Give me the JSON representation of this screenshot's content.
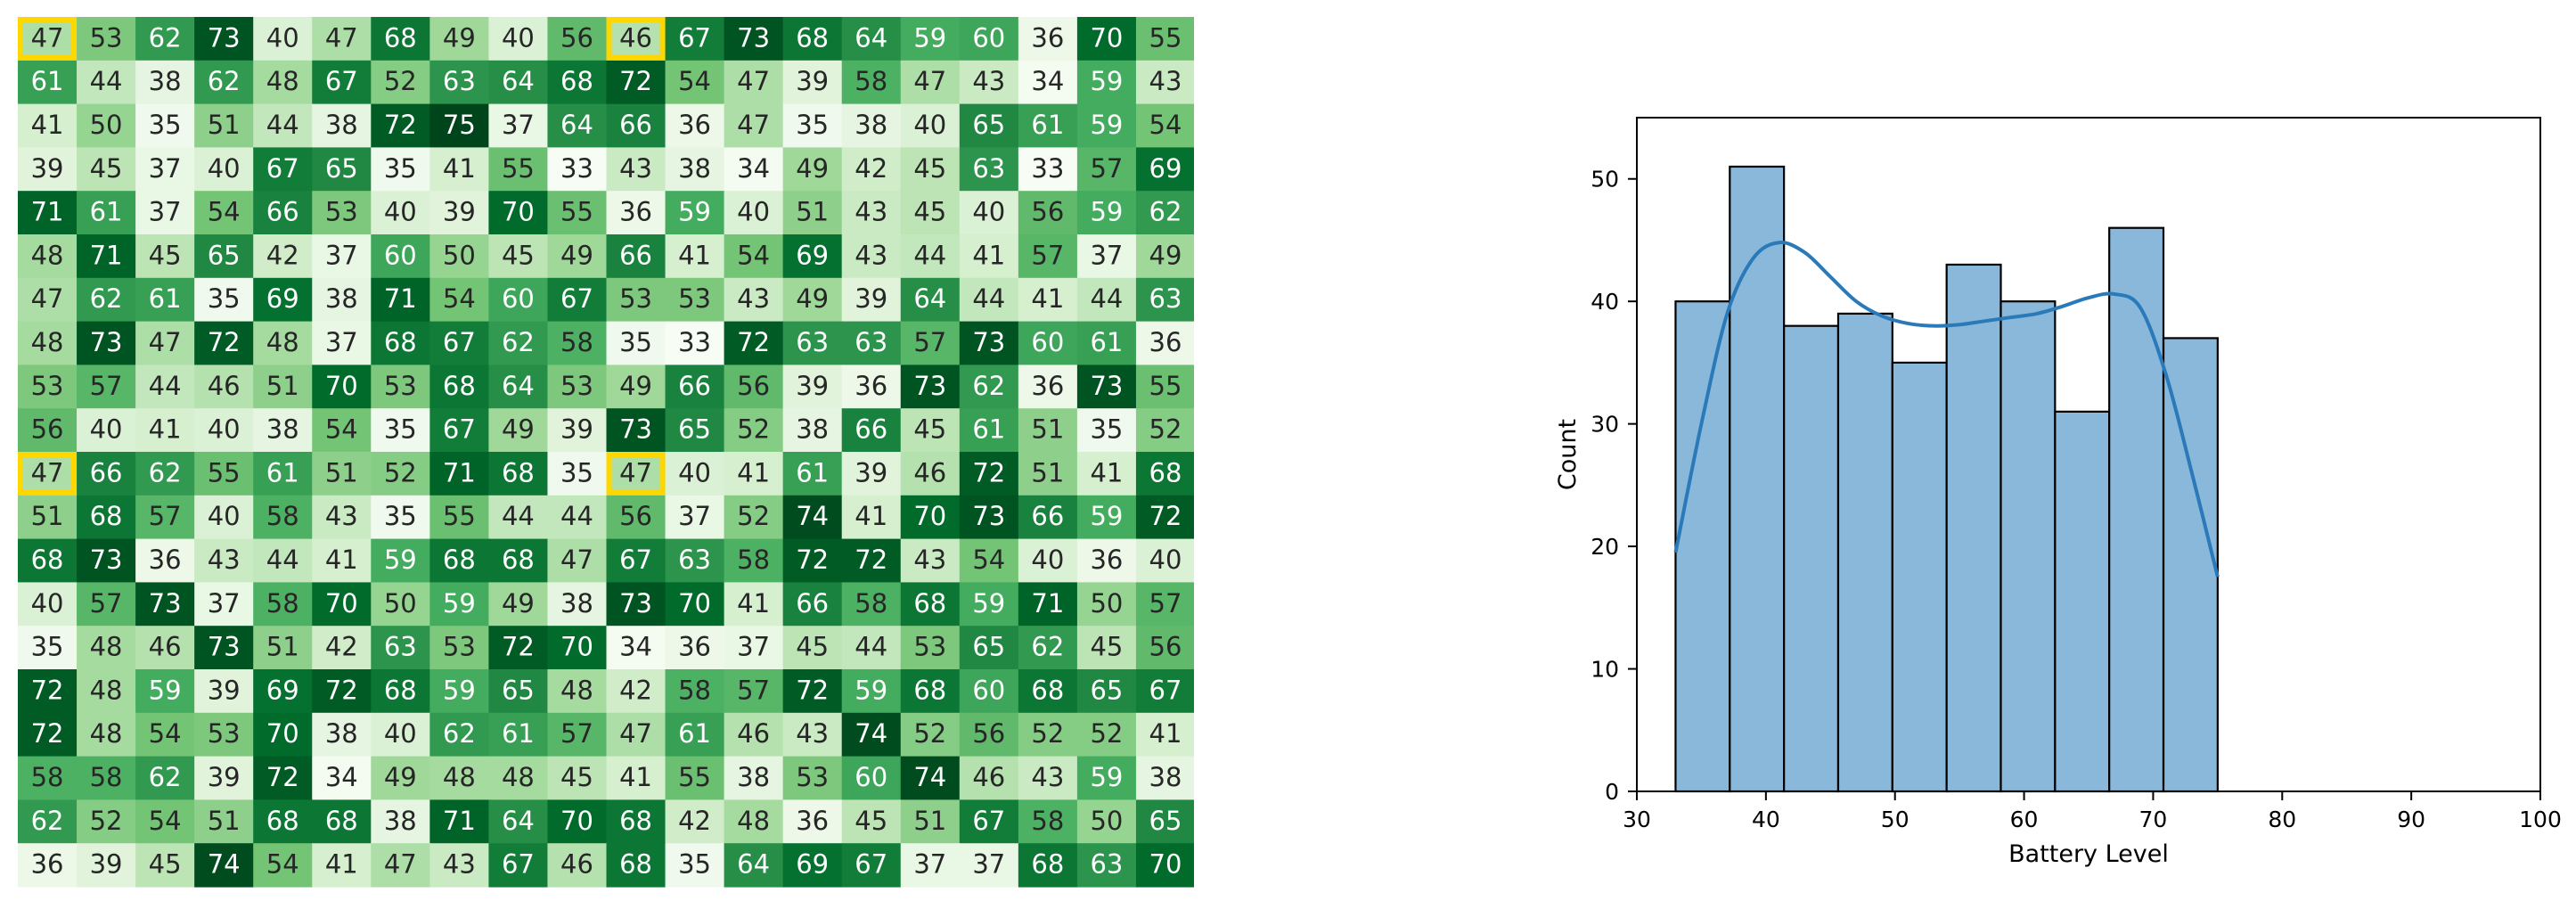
{
  "chart_data": [
    {
      "type": "heatmap",
      "colormap": "Greens",
      "value_range": [
        33,
        75
      ],
      "highlight_color": "#FFD700",
      "highlighted_cells": [
        [
          0,
          0
        ],
        [
          0,
          10
        ],
        [
          10,
          0
        ],
        [
          10,
          10
        ]
      ],
      "rows": [
        [
          47,
          53,
          62,
          73,
          40,
          47,
          68,
          49,
          40,
          56,
          46,
          67,
          73,
          68,
          64,
          59,
          60,
          36,
          70,
          55
        ],
        [
          61,
          44,
          38,
          62,
          48,
          67,
          52,
          63,
          64,
          68,
          72,
          54,
          47,
          39,
          58,
          47,
          43,
          34,
          59,
          43
        ],
        [
          41,
          50,
          35,
          51,
          44,
          38,
          72,
          75,
          37,
          64,
          66,
          36,
          47,
          35,
          38,
          40,
          65,
          61,
          59,
          54
        ],
        [
          39,
          45,
          37,
          40,
          67,
          65,
          35,
          41,
          55,
          33,
          43,
          38,
          34,
          49,
          42,
          45,
          63,
          33,
          57,
          69
        ],
        [
          71,
          61,
          37,
          54,
          66,
          53,
          40,
          39,
          70,
          55,
          36,
          59,
          40,
          51,
          43,
          45,
          40,
          56,
          59,
          62
        ],
        [
          48,
          71,
          45,
          65,
          42,
          37,
          60,
          50,
          45,
          49,
          66,
          41,
          54,
          69,
          43,
          44,
          41,
          57,
          37,
          49
        ],
        [
          47,
          62,
          61,
          35,
          69,
          38,
          71,
          54,
          60,
          67,
          53,
          53,
          43,
          49,
          39,
          64,
          44,
          41,
          44,
          63
        ],
        [
          48,
          73,
          47,
          72,
          48,
          37,
          68,
          67,
          62,
          58,
          35,
          33,
          72,
          63,
          63,
          57,
          73,
          60,
          61,
          36
        ],
        [
          53,
          57,
          44,
          46,
          51,
          70,
          53,
          68,
          64,
          53,
          49,
          66,
          56,
          39,
          36,
          73,
          62,
          36,
          73,
          55
        ],
        [
          56,
          40,
          41,
          40,
          38,
          54,
          35,
          67,
          49,
          39,
          73,
          65,
          52,
          38,
          66,
          45,
          61,
          51,
          35,
          52
        ],
        [
          47,
          66,
          62,
          55,
          61,
          51,
          52,
          71,
          68,
          35,
          47,
          40,
          41,
          61,
          39,
          46,
          72,
          51,
          41,
          68
        ],
        [
          51,
          68,
          57,
          40,
          58,
          43,
          35,
          55,
          44,
          44,
          56,
          37,
          52,
          74,
          41,
          70,
          73,
          66,
          59,
          72
        ],
        [
          68,
          73,
          36,
          43,
          44,
          41,
          59,
          68,
          68,
          47,
          67,
          63,
          58,
          72,
          72,
          43,
          54,
          40,
          36,
          40
        ],
        [
          40,
          57,
          73,
          37,
          58,
          70,
          50,
          59,
          49,
          38,
          73,
          70,
          41,
          66,
          58,
          68,
          59,
          71,
          50,
          57
        ],
        [
          35,
          48,
          46,
          73,
          51,
          42,
          63,
          53,
          72,
          70,
          34,
          36,
          37,
          45,
          44,
          53,
          65,
          62,
          45,
          56
        ],
        [
          72,
          48,
          59,
          39,
          69,
          72,
          68,
          59,
          65,
          48,
          42,
          58,
          57,
          72,
          59,
          68,
          60,
          68,
          65,
          67
        ],
        [
          72,
          48,
          54,
          53,
          70,
          38,
          40,
          62,
          61,
          57,
          47,
          61,
          46,
          43,
          74,
          52,
          56,
          52,
          52,
          41
        ],
        [
          58,
          58,
          62,
          39,
          72,
          34,
          49,
          48,
          48,
          45,
          41,
          55,
          38,
          53,
          60,
          74,
          46,
          43,
          59,
          38
        ],
        [
          62,
          52,
          54,
          51,
          68,
          68,
          38,
          71,
          64,
          70,
          68,
          42,
          48,
          36,
          45,
          51,
          67,
          58,
          50,
          65
        ],
        [
          36,
          39,
          45,
          74,
          54,
          41,
          47,
          43,
          67,
          46,
          68,
          35,
          64,
          69,
          67,
          37,
          37,
          68,
          63,
          70
        ]
      ]
    },
    {
      "type": "bar",
      "subtype": "histogram_with_kde",
      "xlabel": "Battery Level",
      "ylabel": "Count",
      "xlim": [
        30,
        100
      ],
      "ylim": [
        0,
        55
      ],
      "xticks": [
        30,
        40,
        50,
        60,
        70,
        80,
        90,
        100
      ],
      "yticks": [
        0,
        10,
        20,
        30,
        40,
        50
      ],
      "bins": [
        {
          "start": 33.0,
          "end": 37.2,
          "count": 40
        },
        {
          "start": 37.2,
          "end": 41.4,
          "count": 51
        },
        {
          "start": 41.4,
          "end": 45.6,
          "count": 38
        },
        {
          "start": 45.6,
          "end": 49.8,
          "count": 39
        },
        {
          "start": 49.8,
          "end": 54.0,
          "count": 35
        },
        {
          "start": 54.0,
          "end": 58.2,
          "count": 43
        },
        {
          "start": 58.2,
          "end": 62.4,
          "count": 40
        },
        {
          "start": 62.4,
          "end": 66.6,
          "count": 31
        },
        {
          "start": 66.6,
          "end": 70.8,
          "count": 46
        },
        {
          "start": 70.8,
          "end": 75.0,
          "count": 37
        }
      ],
      "kde": {
        "x": [
          33,
          35,
          37,
          39,
          41,
          43,
          45,
          47,
          49,
          51,
          53,
          55,
          57,
          59,
          61,
          63,
          65,
          67,
          69,
          71,
          73,
          75
        ],
        "y": [
          19.5,
          30,
          39,
          43.5,
          44.8,
          44,
          42,
          40,
          38.8,
          38.2,
          38.0,
          38.1,
          38.4,
          38.7,
          39.0,
          39.6,
          40.3,
          40.6,
          39.5,
          34,
          26,
          17.5
        ]
      },
      "colors": {
        "bar_fill": "#8ab8da",
        "bar_edge": "#000000",
        "kde_line": "#2a7ab9"
      }
    }
  ]
}
